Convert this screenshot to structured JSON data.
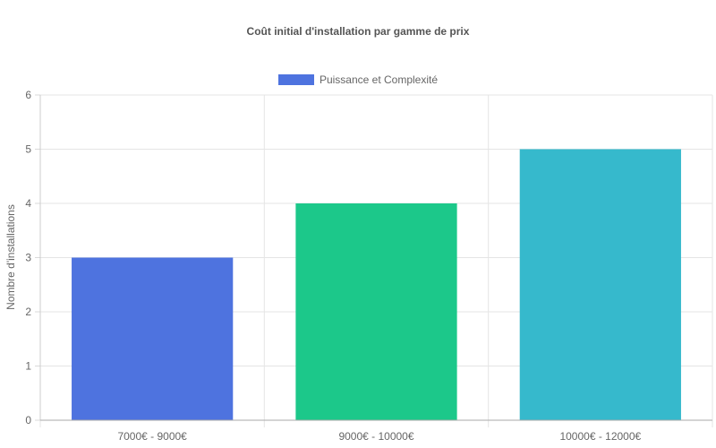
{
  "chart_data": {
    "type": "bar",
    "title": "Coût initial d'installation par gamme de prix",
    "legend": {
      "label": "Puissance et Complexité",
      "color": "#4e73df",
      "placement": "top"
    },
    "xlabel": "",
    "ylabel": "Nombre d'installations",
    "categories": [
      "7000€ - 9000€",
      "9000€ - 10000€",
      "10000€ - 12000€"
    ],
    "values": [
      3,
      4,
      5
    ],
    "bar_colors": [
      "#4e73df",
      "#1cc88a",
      "#36b9cc"
    ],
    "ylim": [
      0,
      6
    ],
    "yticks": [
      0,
      1,
      2,
      3,
      4,
      5,
      6
    ],
    "grid": true
  }
}
